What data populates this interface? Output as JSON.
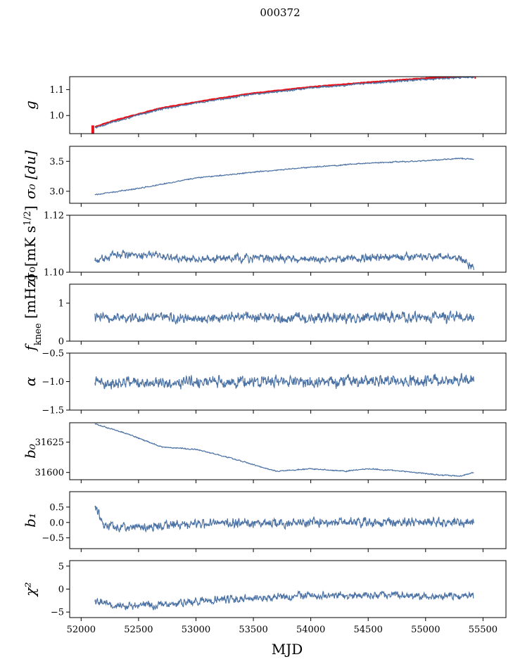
{
  "figure": {
    "title": "000372",
    "xlabel": "MJD"
  },
  "colors": {
    "series": "#4c72a4",
    "overlay": "#e8141c",
    "axis": "#000000"
  },
  "chart_data": {
    "type": "line",
    "x_range": [
      51900,
      55700
    ],
    "x_ticks": [
      52000,
      52500,
      53000,
      53500,
      54000,
      54500,
      55000,
      55500
    ],
    "x_tick_labels": [
      "52000",
      "52500",
      "53000",
      "53500",
      "54000",
      "54500",
      "55000",
      "55500"
    ],
    "panels": [
      {
        "id": "g",
        "ylabel": "g",
        "ylim": [
          0.93,
          1.15
        ],
        "yticks": [
          1.0,
          1.1
        ],
        "ytick_labels": [
          "1.0",
          "1.1"
        ],
        "series_color": "#4c72a4",
        "overlay_color": "#e8141c",
        "trend": {
          "x": [
            52120,
            52300,
            52700,
            53100,
            53500,
            54000,
            54500,
            55000,
            55300,
            55420
          ],
          "y": [
            0.952,
            0.978,
            1.025,
            1.055,
            1.082,
            1.106,
            1.124,
            1.14,
            1.146,
            1.148
          ]
        },
        "noise": 0.003,
        "overlay": true
      },
      {
        "id": "sigma0_du",
        "ylabel": "σ₀ [du]",
        "ylim": [
          2.8,
          3.75
        ],
        "yticks": [
          3.0,
          3.5
        ],
        "ytick_labels": [
          "3.0",
          "3.5"
        ],
        "series_color": "#4c72a4",
        "trend": {
          "x": [
            52120,
            52500,
            53000,
            53500,
            54000,
            54500,
            55000,
            55300,
            55420
          ],
          "y": [
            2.94,
            3.05,
            3.22,
            3.32,
            3.4,
            3.47,
            3.51,
            3.55,
            3.53
          ]
        },
        "noise": 0.008
      },
      {
        "id": "sigma0_mk",
        "ylabel": "σ₀[mK s^1/2]",
        "ylim": [
          1.1,
          1.12
        ],
        "yticks": [
          1.1,
          1.12
        ],
        "ytick_labels": [
          "1.10",
          "1.12"
        ],
        "series_color": "#4c72a4",
        "trend": {
          "x": [
            52120,
            52300,
            52600,
            53000,
            53500,
            54000,
            54500,
            55000,
            55300,
            55420
          ],
          "y": [
            1.1035,
            1.1065,
            1.106,
            1.1045,
            1.105,
            1.1045,
            1.105,
            1.1055,
            1.105,
            1.1015
          ]
        },
        "noise": 0.0012
      },
      {
        "id": "fknee",
        "ylabel": "f_knee [mHz]",
        "ylim": [
          0,
          1.5
        ],
        "yticks": [
          0,
          1
        ],
        "ytick_labels": [
          "0",
          "1"
        ],
        "series_color": "#4c72a4",
        "trend": {
          "x": [
            52120,
            55420
          ],
          "y": [
            0.62,
            0.62
          ]
        },
        "noise": 0.12
      },
      {
        "id": "alpha",
        "ylabel": "α",
        "ylim": [
          -1.5,
          -0.5
        ],
        "yticks": [
          -1.5,
          -1.0,
          -0.5
        ],
        "ytick_labels": [
          "−1.5",
          "−1.0",
          "−0.5"
        ],
        "series_color": "#4c72a4",
        "trend": {
          "x": [
            52120,
            55420
          ],
          "y": [
            -1.02,
            -0.98
          ]
        },
        "noise": 0.09
      },
      {
        "id": "b0",
        "ylabel": "b₀",
        "ylim": [
          31594,
          31641
        ],
        "yticks": [
          31600,
          31625
        ],
        "ytick_labels": [
          "31600",
          "31625"
        ],
        "series_color": "#4c72a4",
        "trend": {
          "x": [
            52120,
            52400,
            52700,
            53000,
            53300,
            53700,
            54000,
            54300,
            54500,
            54800,
            55100,
            55300,
            55420
          ],
          "y": [
            31640,
            31632,
            31621,
            31619,
            31612,
            31601,
            31603,
            31601,
            31603,
            31601,
            31598,
            31597,
            31600
          ]
        },
        "noise": 0.4
      },
      {
        "id": "b1",
        "ylabel": "b₁",
        "ylim": [
          -0.85,
          1.0
        ],
        "yticks": [
          -0.5,
          0.0,
          0.5
        ],
        "ytick_labels": [
          "−0.5",
          "0.0",
          "0.5"
        ],
        "series_color": "#4c72a4",
        "trend": {
          "x": [
            52120,
            52200,
            52600,
            53000,
            54000,
            55000,
            55420
          ],
          "y": [
            0.55,
            -0.15,
            -0.12,
            -0.05,
            0.0,
            0.02,
            0.0
          ]
        },
        "noise": 0.13
      },
      {
        "id": "chi2",
        "ylabel": "χ²",
        "ylim": [
          -6.2,
          6.2
        ],
        "yticks": [
          -5,
          0,
          5
        ],
        "ytick_labels": [
          "−5",
          "0",
          "5"
        ],
        "series_color": "#4c72a4",
        "trend": {
          "x": [
            52120,
            52300,
            52700,
            53200,
            54000,
            54500,
            55000,
            55420
          ],
          "y": [
            -2.8,
            -3.8,
            -3.3,
            -2.3,
            -1.4,
            -1.3,
            -1.5,
            -1.6
          ]
        },
        "noise": 0.7
      }
    ]
  }
}
